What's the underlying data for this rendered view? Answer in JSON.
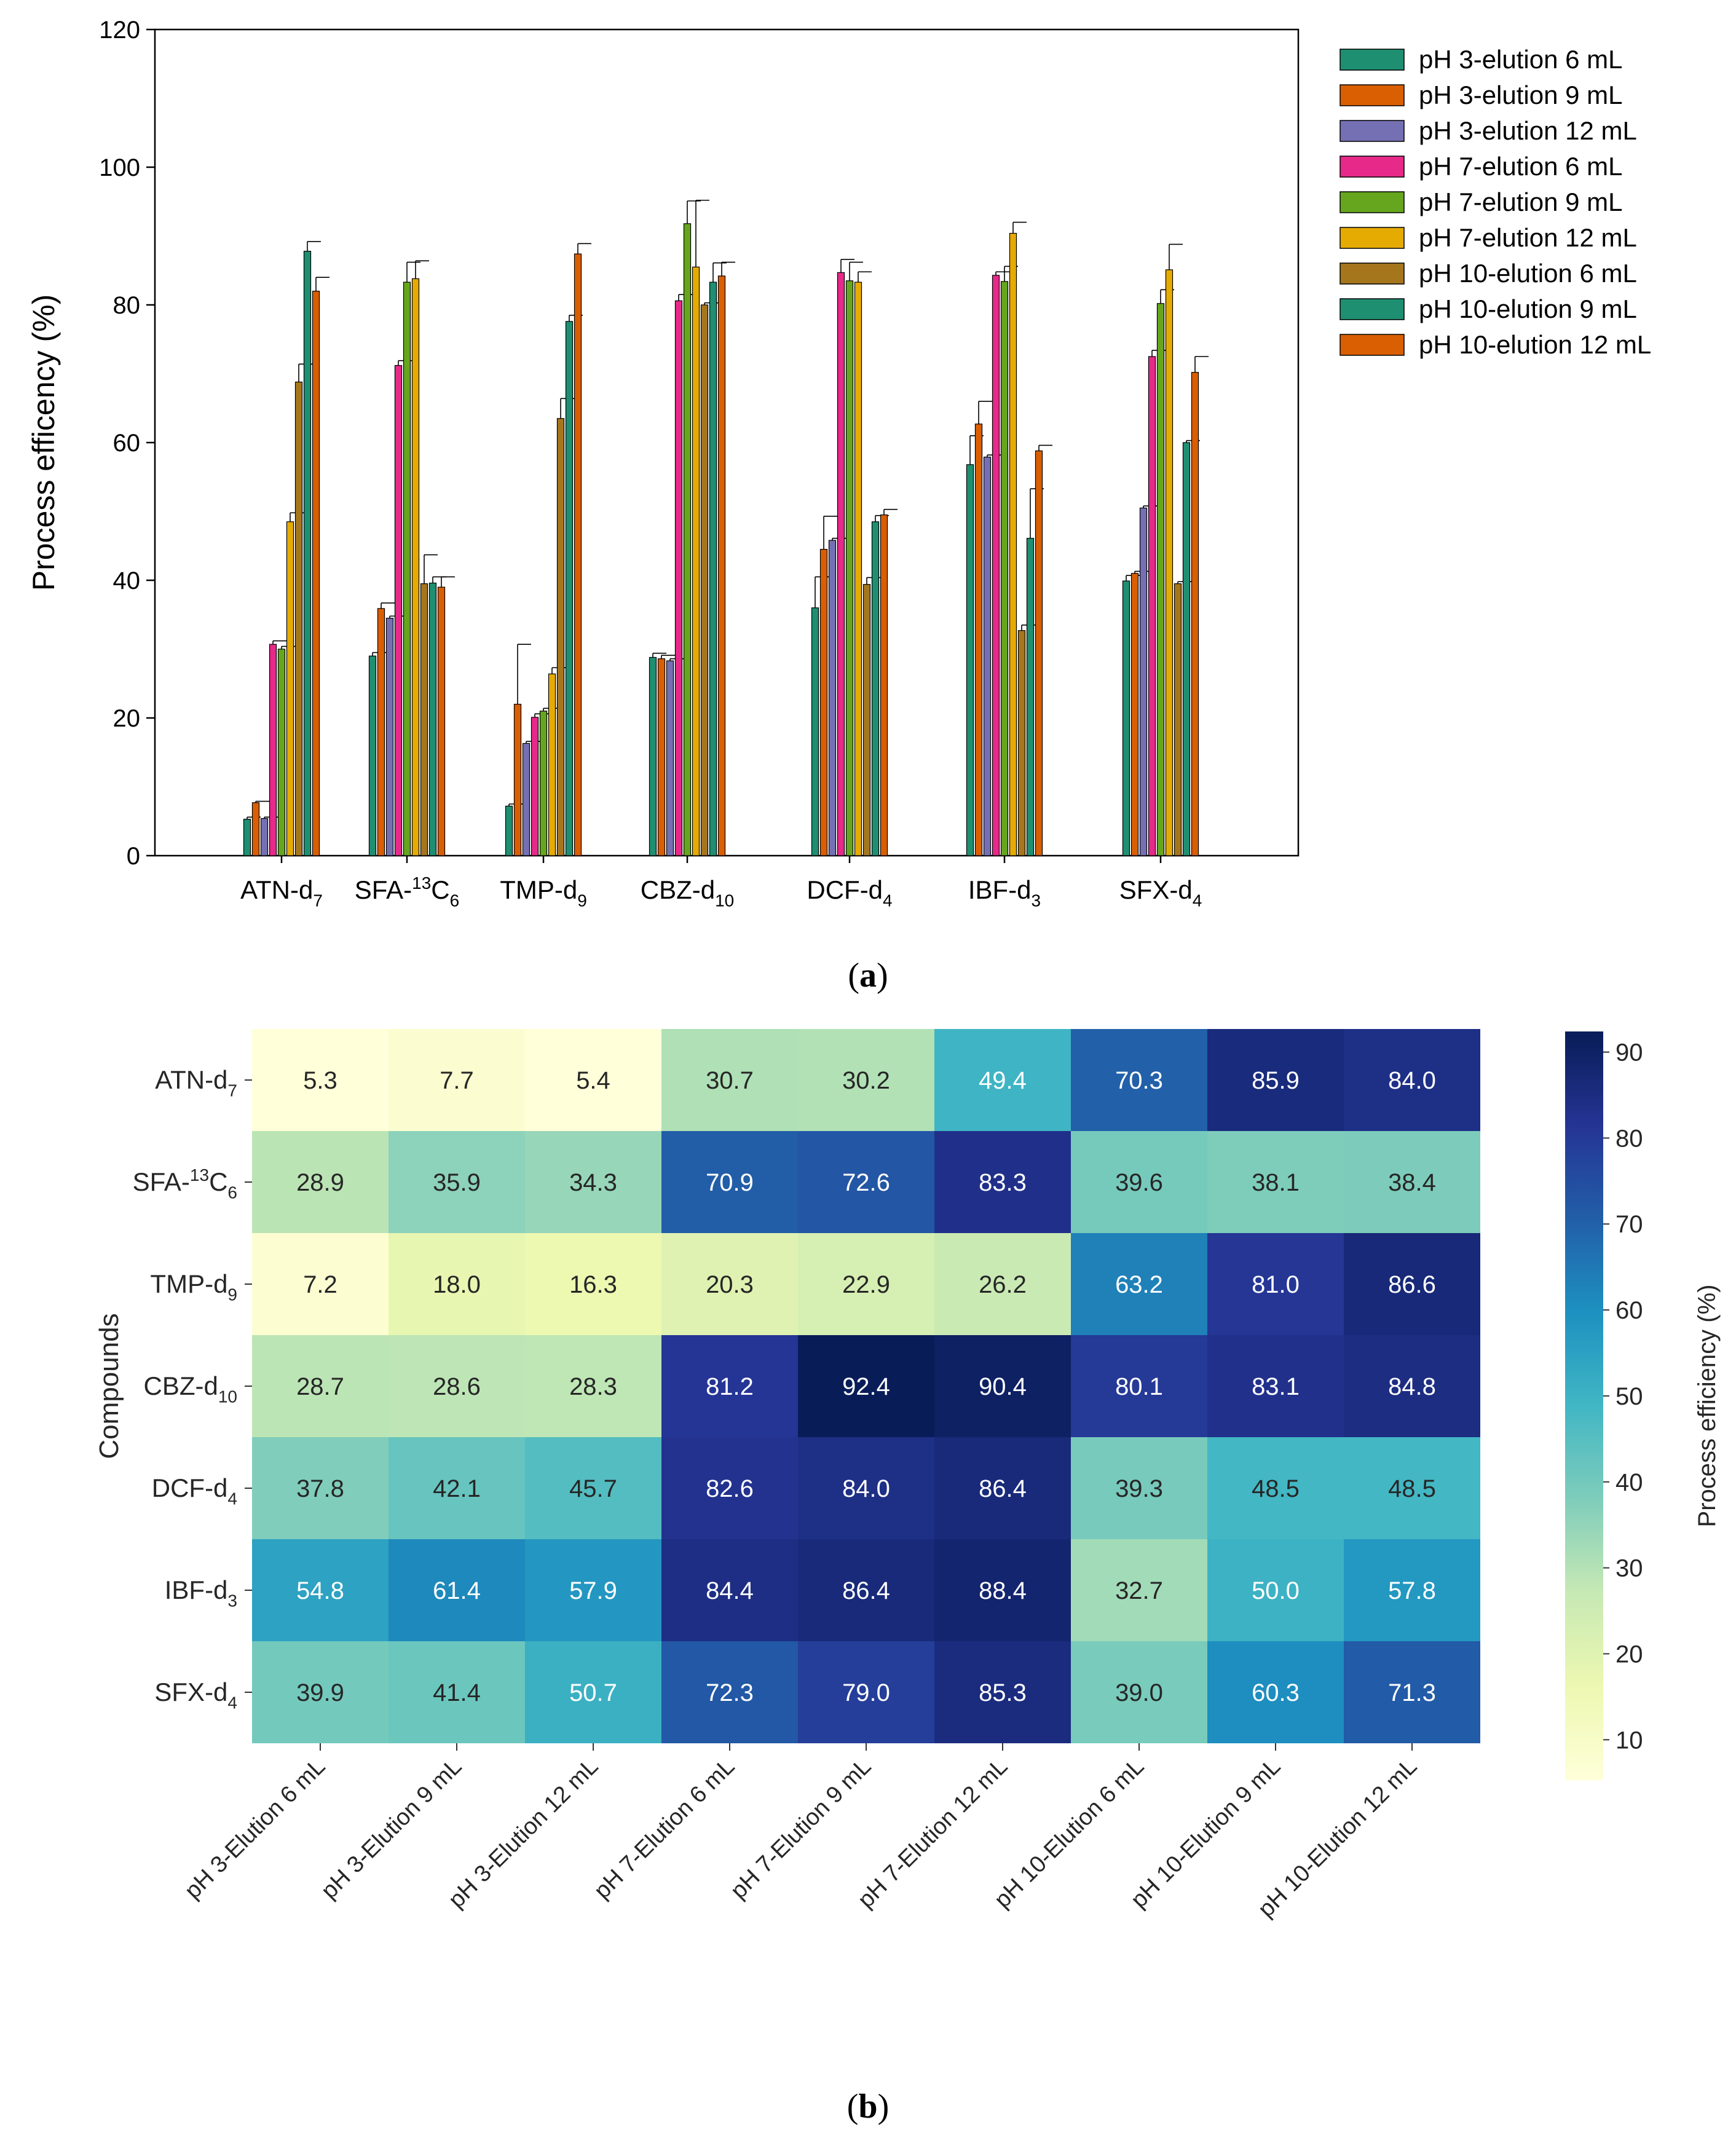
{
  "figure": {
    "panel_a_label": "a",
    "panel_b_label": "b"
  },
  "chart_data": [
    {
      "type": "bar",
      "title": "",
      "xlabel": "",
      "ylabel": "Process efficency (%)",
      "ylim": [
        0,
        120
      ],
      "yticks": [
        0,
        20,
        40,
        60,
        80,
        100,
        120
      ],
      "grid": false,
      "legend_position": "right",
      "categories": [
        {
          "base": "ATN-d",
          "sub": "7",
          "pre": ""
        },
        {
          "base": "SFA-",
          "sup": "13",
          "mid": "C",
          "sub": "6"
        },
        {
          "base": "TMP-d",
          "sub": "9"
        },
        {
          "base": "CBZ-d",
          "sub": "10"
        },
        {
          "base": "DCF-d",
          "sub": "4"
        },
        {
          "base": "IBF-d",
          "sub": "3"
        },
        {
          "base": "SFX-d",
          "sub": "4"
        }
      ],
      "series": [
        {
          "name": "pH 3-elution 6 mL",
          "color": "#1f8f72",
          "values": [
            5.3,
            29.0,
            7.2,
            28.8,
            36.0,
            56.8,
            39.9
          ],
          "errors": [
            0.3,
            0.5,
            0.3,
            0.6,
            4.5,
            4.2,
            0.8
          ]
        },
        {
          "name": "pH 3-elution 9 mL",
          "color": "#d95f02",
          "values": [
            7.7,
            35.9,
            22.0,
            28.6,
            44.5,
            62.7,
            41.0
          ],
          "errors": [
            0.2,
            0.8,
            8.7,
            0.5,
            4.8,
            3.3,
            0.3
          ]
        },
        {
          "name": "pH 3-elution 12 mL",
          "color": "#7570b3",
          "values": [
            5.4,
            34.5,
            16.3,
            28.3,
            45.8,
            57.9,
            50.5
          ],
          "errors": [
            0.2,
            0.3,
            0.3,
            0.3,
            0.3,
            0.3,
            0.3
          ]
        },
        {
          "name": "pH 7-elution 6 mL",
          "color": "#e7298a",
          "values": [
            30.7,
            71.2,
            20.1,
            80.6,
            84.7,
            84.3,
            72.5
          ],
          "errors": [
            0.5,
            0.7,
            0.5,
            0.9,
            1.9,
            0.5,
            0.9
          ]
        },
        {
          "name": "pH 7-elution 9 mL",
          "color": "#66a61e",
          "values": [
            30.0,
            83.3,
            21.0,
            91.8,
            83.5,
            83.4,
            80.2
          ],
          "errors": [
            0.4,
            2.9,
            0.4,
            3.3,
            2.7,
            2.2,
            2.0
          ]
        },
        {
          "name": "pH 7-elution 12 mL",
          "color": "#e6ab02",
          "values": [
            48.5,
            83.8,
            26.4,
            85.5,
            83.3,
            90.4,
            85.1
          ],
          "errors": [
            1.3,
            2.6,
            0.9,
            9.7,
            1.5,
            1.6,
            3.7
          ]
        },
        {
          "name": "pH 10-elution 6 mL",
          "color": "#a6761d",
          "values": [
            68.8,
            39.5,
            63.5,
            80.0,
            39.4,
            32.7,
            39.5
          ],
          "errors": [
            2.6,
            4.2,
            2.9,
            0.3,
            1.0,
            0.8,
            0.3
          ]
        },
        {
          "name": "pH 10-elution 9 mL",
          "color": "#1f8f72",
          "values": [
            87.8,
            39.6,
            77.6,
            83.3,
            48.5,
            46.1,
            60.0
          ],
          "errors": [
            1.4,
            0.9,
            0.9,
            2.8,
            0.9,
            7.2,
            0.3
          ]
        },
        {
          "name": "pH 10-elution 12 mL",
          "color": "#d95f02",
          "values": [
            82.0,
            39.0,
            87.4,
            84.2,
            49.5,
            58.8,
            70.2
          ],
          "errors": [
            2.0,
            1.5,
            1.5,
            2.0,
            0.8,
            0.8,
            2.3
          ]
        }
      ]
    },
    {
      "type": "heatmap",
      "title": "",
      "xlabel": "",
      "ylabel": "Compounds",
      "colorbar_label": "Process efficiency (%)",
      "colorbar_range": [
        5.3,
        92.4
      ],
      "colorbar_ticks": [
        10,
        20,
        30,
        40,
        50,
        60,
        70,
        80,
        90
      ],
      "columns": [
        "pH 3-Elution 6 mL",
        "pH 3-Elution 9 mL",
        "pH 3-Elution 12 mL",
        "pH 7-Elution 6 mL",
        "pH 7-Elution 9 mL",
        "pH 7-Elution 12 mL",
        "pH 10-Elution 6 mL",
        "pH 10-Elution 9 mL",
        "pH 10-Elution 12 mL"
      ],
      "rows": [
        {
          "base": "ATN-d",
          "sub": "7"
        },
        {
          "base": "SFA-",
          "sup": "13",
          "mid": "C",
          "sub": "6"
        },
        {
          "base": "TMP-d",
          "sub": "9"
        },
        {
          "base": "CBZ-d",
          "sub": "10"
        },
        {
          "base": "DCF-d",
          "sub": "4"
        },
        {
          "base": "IBF-d",
          "sub": "3"
        },
        {
          "base": "SFX-d",
          "sub": "4"
        }
      ],
      "values": [
        [
          5.3,
          7.7,
          5.4,
          30.7,
          30.2,
          49.4,
          70.3,
          85.9,
          84.0
        ],
        [
          28.9,
          35.9,
          34.3,
          70.9,
          72.6,
          83.3,
          39.6,
          38.1,
          38.4
        ],
        [
          7.2,
          18.0,
          16.3,
          20.3,
          22.9,
          26.2,
          63.2,
          81.0,
          86.6
        ],
        [
          28.7,
          28.6,
          28.3,
          81.2,
          92.4,
          90.4,
          80.1,
          83.1,
          84.8
        ],
        [
          37.8,
          42.1,
          45.7,
          82.6,
          84.0,
          86.4,
          39.3,
          48.5,
          48.5
        ],
        [
          54.8,
          61.4,
          57.9,
          84.4,
          86.4,
          88.4,
          32.7,
          50.0,
          57.8
        ],
        [
          39.9,
          41.4,
          50.7,
          72.3,
          79.0,
          85.3,
          39.0,
          60.3,
          71.3
        ]
      ]
    }
  ]
}
